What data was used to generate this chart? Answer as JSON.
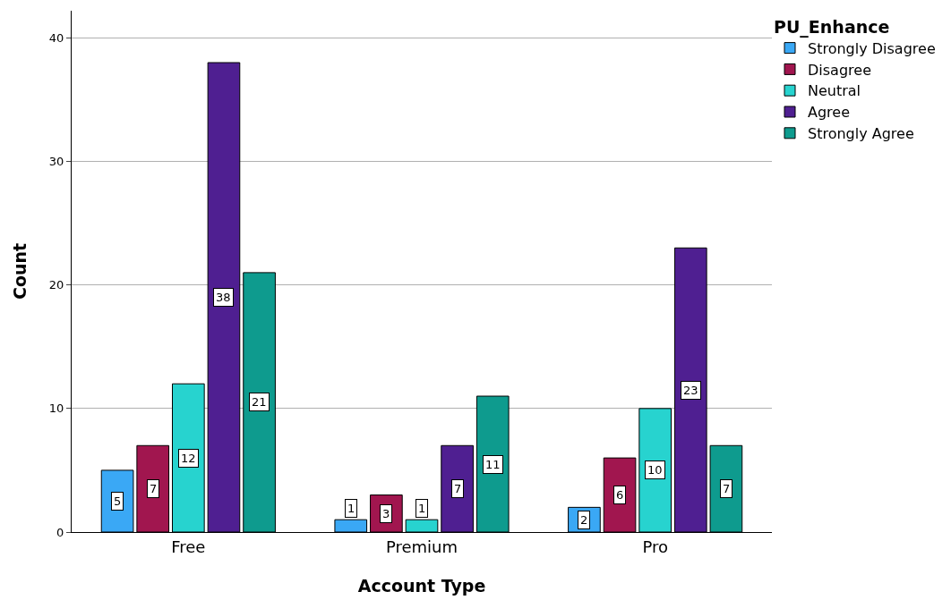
{
  "chart_data": {
    "type": "bar",
    "xlabel": "Account Type",
    "ylabel": "Count",
    "legend_title": "PU_Enhance",
    "categories": [
      "Free",
      "Premium",
      "Pro"
    ],
    "series": [
      {
        "name": "Strongly Disagree",
        "color": "#3aa8f5",
        "values": [
          5,
          1,
          2
        ]
      },
      {
        "name": "Disagree",
        "color": "#a1164f",
        "values": [
          7,
          3,
          6
        ]
      },
      {
        "name": "Neutral",
        "color": "#27d3cf",
        "values": [
          12,
          1,
          10
        ]
      },
      {
        "name": "Agree",
        "color": "#4f1f91",
        "values": [
          38,
          7,
          23
        ]
      },
      {
        "name": "Strongly Agree",
        "color": "#0e9b8e",
        "values": [
          21,
          11,
          7
        ]
      }
    ],
    "ylim": [
      0,
      42.2
    ],
    "yticks": [
      0,
      10,
      20,
      30,
      40
    ],
    "grid": "y",
    "legend": "top right",
    "data_labels": true
  }
}
